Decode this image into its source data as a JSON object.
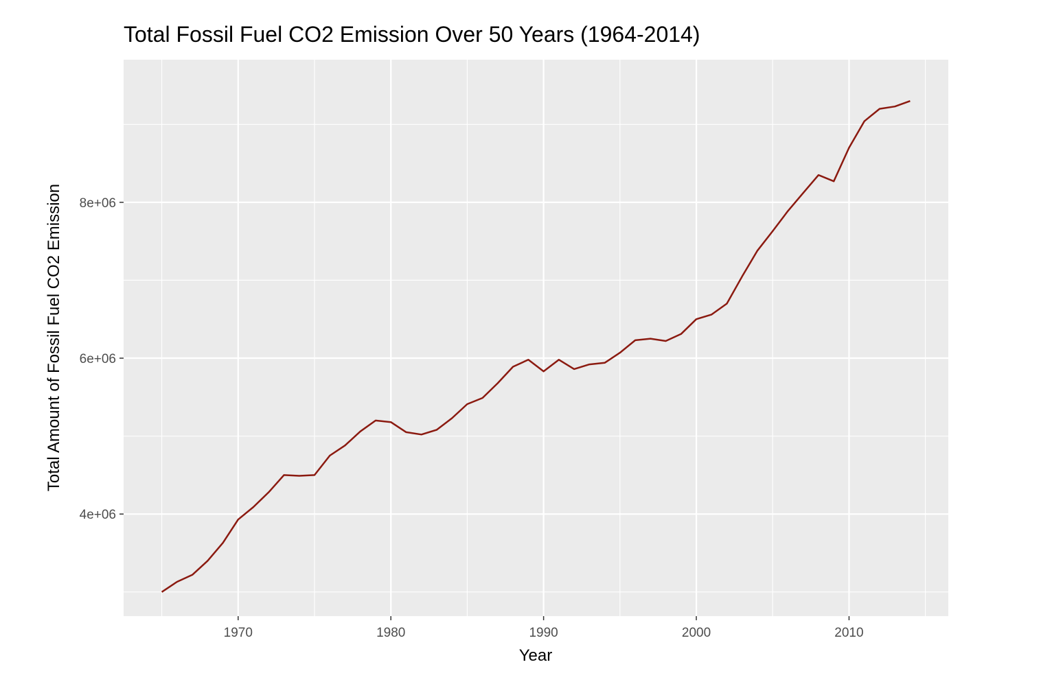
{
  "chart_data": {
    "type": "line",
    "title": "Total Fossil Fuel CO2 Emission Over 50 Years (1964-2014)",
    "xlabel": "Year",
    "ylabel": "Total Amount of Fossil Fuel CO2 Emission",
    "xlim": [
      1962.5,
      2016.5
    ],
    "ylim": [
      2690000,
      9830000
    ],
    "x_ticks": [
      1970,
      1980,
      1990,
      2000,
      2010
    ],
    "x_tick_labels": [
      "1970",
      "1980",
      "1990",
      "2000",
      "2010"
    ],
    "y_ticks": [
      4000000,
      6000000,
      8000000
    ],
    "y_tick_labels": [
      "4e+06",
      "6e+06",
      "8e+06"
    ],
    "grid": true,
    "line_color": "#8b1a10",
    "panel_color": "#ebebeb",
    "series": [
      {
        "x": [
          1965,
          1966,
          1967,
          1968,
          1969,
          1970,
          1971,
          1972,
          1973,
          1974,
          1975,
          1976,
          1977,
          1978,
          1979,
          1980,
          1981,
          1982,
          1983,
          1984,
          1985,
          1986,
          1987,
          1988,
          1989,
          1990,
          1991,
          1992,
          1993,
          1994,
          1995,
          1996,
          1997,
          1998,
          1999,
          2000,
          2001,
          2002,
          2003,
          2004,
          2005,
          2006,
          2007,
          2008,
          2009,
          2010,
          2011,
          2012,
          2013,
          2014
        ],
        "values": [
          3000000,
          3130000,
          3220000,
          3400000,
          3630000,
          3930000,
          4090000,
          4280000,
          4500000,
          4490000,
          4500000,
          4750000,
          4880000,
          5060000,
          5200000,
          5180000,
          5050000,
          5020000,
          5080000,
          5230000,
          5410000,
          5490000,
          5680000,
          5890000,
          5980000,
          5830000,
          5980000,
          5860000,
          5920000,
          5940000,
          6070000,
          6230000,
          6250000,
          6220000,
          6310000,
          6500000,
          6560000,
          6700000,
          7050000,
          7380000,
          7630000,
          7890000,
          8120000,
          8350000,
          8270000,
          8700000,
          9040000,
          9200000,
          9230000,
          9300000
        ]
      }
    ]
  }
}
